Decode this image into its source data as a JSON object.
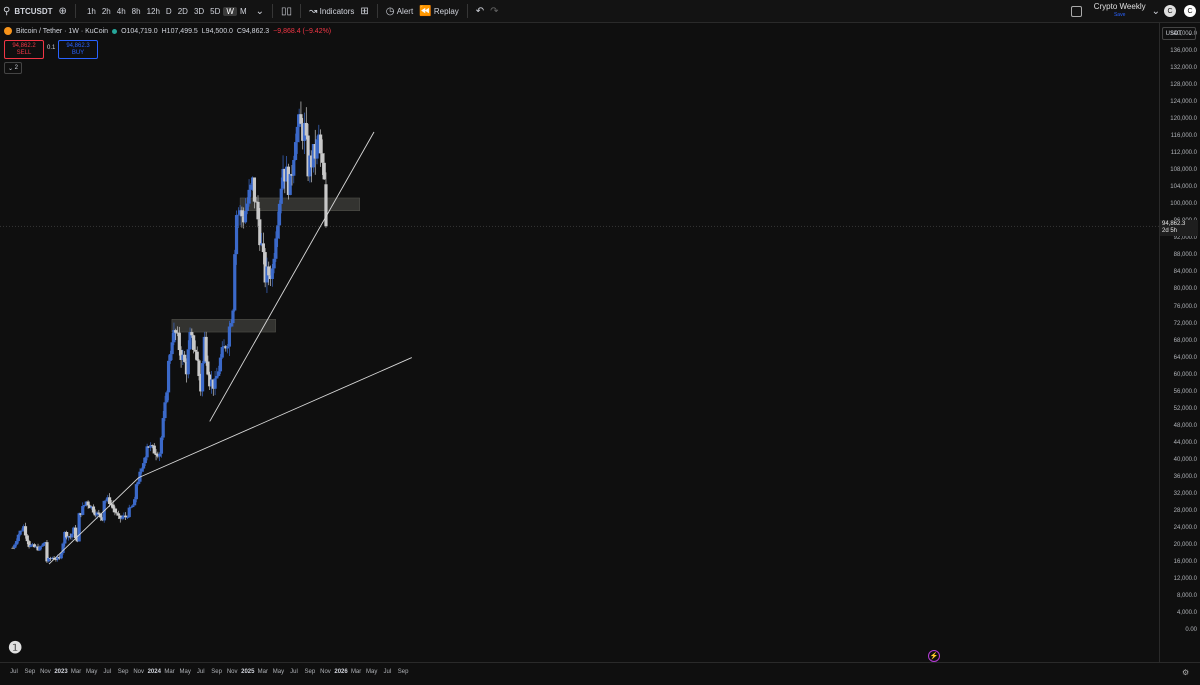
{
  "toolbar": {
    "symbol": "BTCUSDT",
    "add_symbol_icon": "plus-circle-icon",
    "intervals": [
      "1h",
      "2h",
      "4h",
      "8h",
      "12h",
      "D",
      "2D",
      "3D",
      "5D",
      "W",
      "M"
    ],
    "active_interval": "W",
    "indicators_label": "Indicators",
    "alert_label": "Alert",
    "replay_label": "Replay",
    "layout_title": "Crypto Weekly",
    "layout_sub": "Save"
  },
  "legend": {
    "title": "Bitcoin / Tether · 1W · KuCoin",
    "open": "O104,719.0",
    "high": "H107,499.5",
    "low": "L94,500.0",
    "close": "C94,862.3",
    "change": "−9,868.4 (−9.42%)"
  },
  "trade": {
    "sell_price": "94,862.2",
    "sell_label": "SELL",
    "qty": "0.1",
    "buy_price": "94,862.3",
    "buy_label": "BUY",
    "collapse_label": "2"
  },
  "axis": {
    "currency": "USDT",
    "current_price": "94,862.3",
    "countdown": "2d 5h"
  },
  "chart_data": {
    "type": "candlestick",
    "title": "Bitcoin / Tether · 1W · KuCoin",
    "ylim": [
      0,
      144000
    ],
    "y_ticks": [
      "0.00",
      "4,000.0",
      "8,000.0",
      "12,000.0",
      "16,000.0",
      "20,000.0",
      "24,000.0",
      "28,000.0",
      "32,000.0",
      "36,000.0",
      "40,000.0",
      "44,000.0",
      "48,000.0",
      "52,000.0",
      "56,000.0",
      "60,000.0",
      "64,000.0",
      "68,000.0",
      "72,000.0",
      "76,000.0",
      "80,000.0",
      "84,000.0",
      "88,000.0",
      "92,000.0",
      "96,000.0",
      "100,000.0",
      "104,000.0",
      "108,000.0",
      "112,000.0",
      "116,000.0",
      "120,000.0",
      "124,000.0",
      "128,000.0",
      "132,000.0",
      "136,000.0",
      "140,000.0"
    ],
    "x_ticks": [
      {
        "label": "Jul",
        "date": "2022-07-01",
        "year": false
      },
      {
        "label": "Sep",
        "date": "2022-09-01",
        "year": false
      },
      {
        "label": "Nov",
        "date": "2022-11-01",
        "year": false
      },
      {
        "label": "2023",
        "date": "2023-01-01",
        "year": true
      },
      {
        "label": "Mar",
        "date": "2023-03-01",
        "year": false
      },
      {
        "label": "May",
        "date": "2023-05-01",
        "year": false
      },
      {
        "label": "Jul",
        "date": "2023-07-01",
        "year": false
      },
      {
        "label": "Sep",
        "date": "2023-09-01",
        "year": false
      },
      {
        "label": "Nov",
        "date": "2023-11-01",
        "year": false
      },
      {
        "label": "2024",
        "date": "2024-01-01",
        "year": true
      },
      {
        "label": "Mar",
        "date": "2024-03-01",
        "year": false
      },
      {
        "label": "May",
        "date": "2024-05-01",
        "year": false
      },
      {
        "label": "Jul",
        "date": "2024-07-01",
        "year": false
      },
      {
        "label": "Sep",
        "date": "2024-09-01",
        "year": false
      },
      {
        "label": "Nov",
        "date": "2024-11-01",
        "year": false
      },
      {
        "label": "2025",
        "date": "2025-01-01",
        "year": true
      },
      {
        "label": "Mar",
        "date": "2025-03-01",
        "year": false
      },
      {
        "label": "May",
        "date": "2025-05-01",
        "year": false
      },
      {
        "label": "Jul",
        "date": "2025-07-01",
        "year": false
      },
      {
        "label": "Sep",
        "date": "2025-09-01",
        "year": false
      },
      {
        "label": "Nov",
        "date": "2025-11-01",
        "year": false
      },
      {
        "label": "2026",
        "date": "2026-01-01",
        "year": true
      },
      {
        "label": "Mar",
        "date": "2026-03-01",
        "year": false
      },
      {
        "label": "May",
        "date": "2026-05-01",
        "year": false
      },
      {
        "label": "Jul",
        "date": "2026-07-01",
        "year": false
      },
      {
        "label": "Sep",
        "date": "2026-09-01",
        "year": false
      }
    ],
    "close_series": [
      [
        "2022-06-27",
        19300
      ],
      [
        "2022-07-18",
        22500
      ],
      [
        "2022-08-08",
        24300
      ],
      [
        "2022-08-29",
        19900
      ],
      [
        "2022-09-19",
        19400
      ],
      [
        "2022-10-10",
        19100
      ],
      [
        "2022-10-31",
        20700
      ],
      [
        "2022-11-07",
        16200
      ],
      [
        "2022-11-28",
        17000
      ],
      [
        "2022-12-26",
        16600
      ],
      [
        "2023-01-16",
        22700
      ],
      [
        "2023-02-06",
        21800
      ],
      [
        "2023-02-20",
        23500
      ],
      [
        "2023-03-06",
        20600
      ],
      [
        "2023-03-13",
        26900
      ],
      [
        "2023-04-10",
        30200
      ],
      [
        "2023-05-01",
        28800
      ],
      [
        "2023-05-22",
        27200
      ],
      [
        "2023-06-12",
        26400
      ],
      [
        "2023-06-19",
        30700
      ],
      [
        "2023-07-10",
        30300
      ],
      [
        "2023-08-14",
        26100
      ],
      [
        "2023-09-11",
        26600
      ],
      [
        "2023-10-16",
        29900
      ],
      [
        "2023-10-23",
        34500
      ],
      [
        "2023-11-13",
        37200
      ],
      [
        "2023-12-04",
        43800
      ],
      [
        "2023-12-25",
        42300
      ],
      [
        "2024-01-22",
        41800
      ],
      [
        "2024-02-12",
        52100
      ],
      [
        "2024-02-26",
        62400
      ],
      [
        "2024-03-11",
        69000
      ],
      [
        "2024-03-25",
        69500
      ],
      [
        "2024-04-15",
        64900
      ],
      [
        "2024-05-06",
        61400
      ],
      [
        "2024-05-20",
        68500
      ],
      [
        "2024-06-10",
        66000
      ],
      [
        "2024-07-01",
        56700
      ],
      [
        "2024-07-15",
        68200
      ],
      [
        "2024-08-05",
        58700
      ],
      [
        "2024-08-26",
        57400
      ],
      [
        "2024-09-16",
        63500
      ],
      [
        "2024-10-14",
        68400
      ],
      [
        "2024-11-04",
        76700
      ],
      [
        "2024-11-11",
        90400
      ],
      [
        "2024-11-18",
        98000
      ],
      [
        "2024-12-16",
        97200
      ],
      [
        "2025-01-20",
        104700
      ],
      [
        "2025-02-10",
        96500
      ],
      [
        "2025-03-10",
        83000
      ],
      [
        "2025-04-07",
        84500
      ],
      [
        "2025-04-21",
        94300
      ],
      [
        "2025-05-19",
        109000
      ],
      [
        "2025-06-16",
        104000
      ],
      [
        "2025-07-07",
        117500
      ],
      [
        "2025-07-21",
        118000
      ],
      [
        "2025-08-11",
        117300
      ],
      [
        "2025-08-25",
        108700
      ],
      [
        "2025-09-22",
        112000
      ],
      [
        "2025-10-06",
        115000
      ],
      [
        "2025-10-27",
        104700
      ],
      [
        "2025-11-03",
        94862.3
      ]
    ],
    "zones": [
      {
        "from": "2024-03-10",
        "to": "2025-04-20",
        "low": 70000,
        "high": 73000
      },
      {
        "from": "2024-12-02",
        "to": "2026-03-15",
        "low": 98500,
        "high": 101500
      }
    ],
    "trendlines": [
      {
        "from": [
          "2022-11-15",
          15500
        ],
        "to": [
          "2023-11-01",
          35800
        ]
      },
      {
        "from": [
          "2023-11-01",
          35800
        ],
        "to": [
          "2026-10-05",
          64000
        ]
      },
      {
        "from": [
          "2024-08-05",
          49000
        ],
        "to": [
          "2026-05-10",
          117000
        ]
      }
    ]
  }
}
